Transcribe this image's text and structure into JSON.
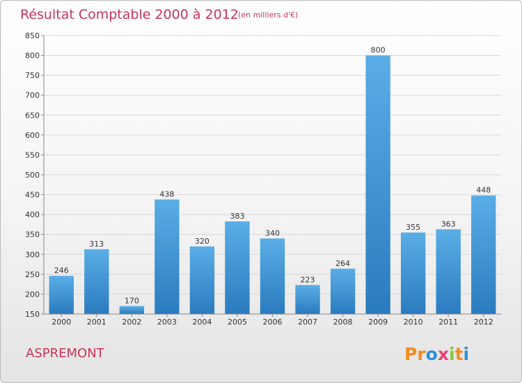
{
  "chart_data": {
    "type": "bar",
    "title": "Résultat Comptable 2000 à 2012",
    "subtitle": "(en milliers d'€)",
    "categories": [
      "2000",
      "2001",
      "2002",
      "2003",
      "2004",
      "2005",
      "2006",
      "2007",
      "2008",
      "2009",
      "2010",
      "2011",
      "2012"
    ],
    "values": [
      246,
      313,
      170,
      438,
      320,
      383,
      340,
      223,
      264,
      800,
      355,
      363,
      448
    ],
    "ylim": [
      150,
      850
    ],
    "yticks": [
      150,
      200,
      250,
      300,
      350,
      400,
      450,
      500,
      550,
      600,
      650,
      700,
      750,
      800,
      850
    ],
    "grid": true,
    "xlabel": "",
    "ylabel": ""
  },
  "location_name": "ASPREMONT",
  "brand": {
    "letters": [
      "P",
      "r",
      "o",
      "x",
      "i",
      "t",
      "i"
    ],
    "colors": [
      "#f28c1e",
      "#f28c1e",
      "#2f8fd8",
      "#e9427b",
      "#8cc63f",
      "#f28c1e",
      "#2f8fd8"
    ]
  },
  "colors": {
    "bar_light": "#5aaee6",
    "bar_dark": "#2a7bbf",
    "title": "#c8345a"
  }
}
